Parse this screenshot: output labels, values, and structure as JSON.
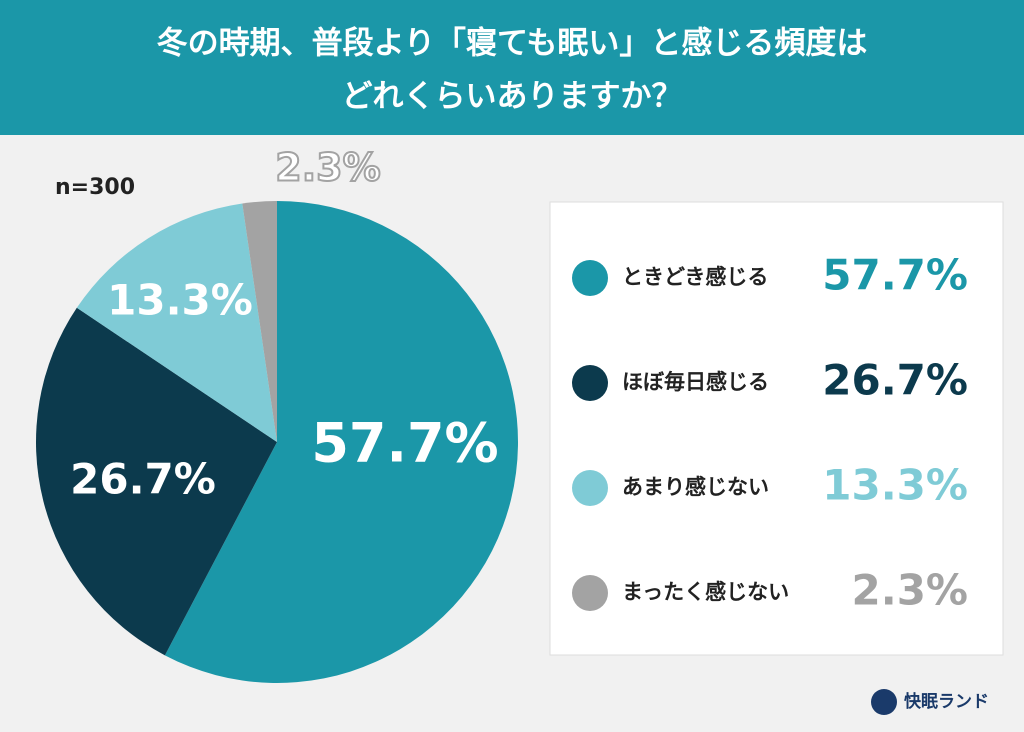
{
  "chart_data": {
    "type": "pie",
    "title": [
      "冬の時期、普段より「寝ても眠い」と感じる頻度は",
      "どれくらいありますか？"
    ],
    "note": "n=300",
    "categories": [
      "ときどき感じる",
      "ほぼ毎日感じる",
      "あまり感じない",
      "まったく感じない"
    ],
    "values": [
      57.7,
      26.7,
      13.3,
      2.3
    ],
    "value_labels": [
      "57.7%",
      "26.7%",
      "13.3%",
      "2.3%"
    ],
    "colors": [
      "#1b97a8",
      "#0c3a4d",
      "#7fcbd6",
      "#a3a3a3"
    ],
    "brand": "快眠ランド"
  }
}
